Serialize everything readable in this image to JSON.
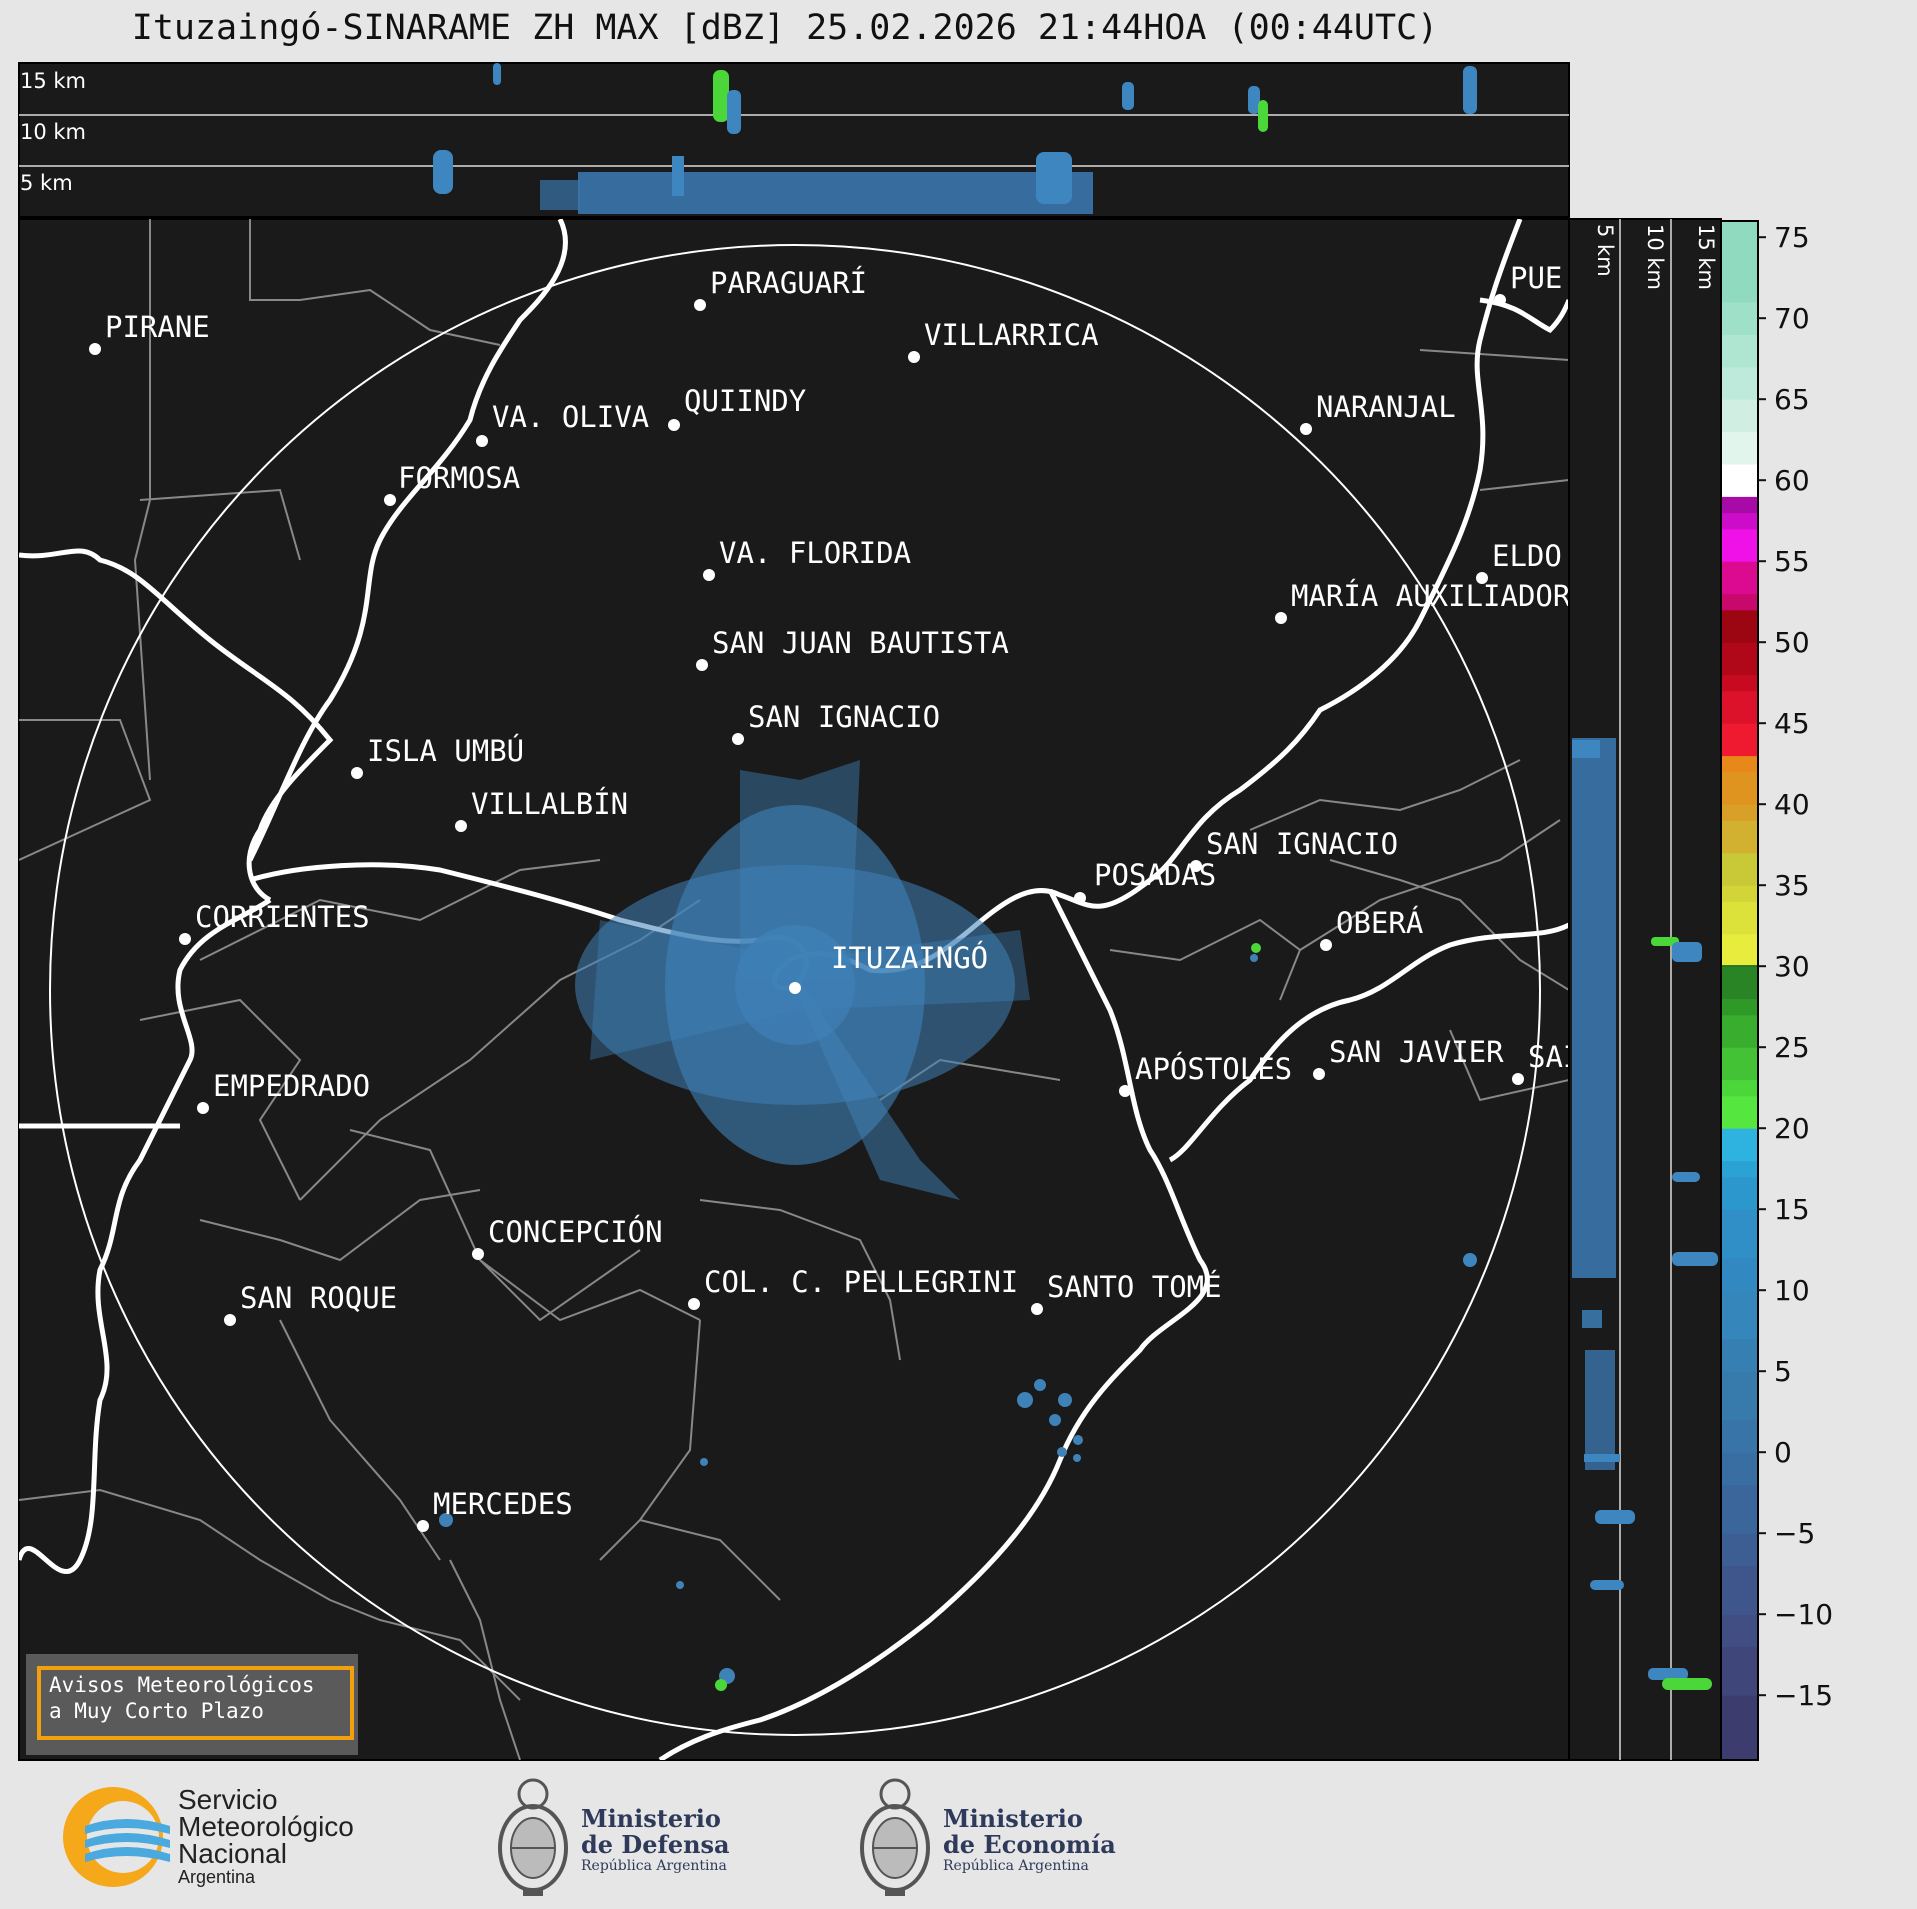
{
  "title": "Ituzaingó-SINARAME ZH MAX [dBZ] 25.02.2026 21:44HOA (00:44UTC)",
  "height_labels": [
    "15 km",
    "10 km",
    "5 km"
  ],
  "cities": [
    {
      "name": "PIRANE"
    },
    {
      "name": "PARAGUARÍ"
    },
    {
      "name": "VILLARRICA"
    },
    {
      "name": "PUE"
    },
    {
      "name": "VA. OLIVA"
    },
    {
      "name": "QUIINDY"
    },
    {
      "name": "NARANJAL"
    },
    {
      "name": "FORMOSA"
    },
    {
      "name": "VA. FLORIDA"
    },
    {
      "name": "ELDO"
    },
    {
      "name": "MARÍA AUXILIADOR"
    },
    {
      "name": "SAN JUAN BAUTISTA"
    },
    {
      "name": "SAN IGNACIO"
    },
    {
      "name": "ISLA UMBÚ"
    },
    {
      "name": "VILLALBÍN"
    },
    {
      "name": "SAN IGNACIO"
    },
    {
      "name": "POSADAS"
    },
    {
      "name": "CORRIENTES"
    },
    {
      "name": "ITUZAINGÓ"
    },
    {
      "name": "OBERÁ"
    },
    {
      "name": "EMPEDRADO"
    },
    {
      "name": "APÓSTOLES"
    },
    {
      "name": "SAN JAVIER"
    },
    {
      "name": "SAI"
    },
    {
      "name": "CONCEPCIÓN"
    },
    {
      "name": "COL. C. PELLEGRINI"
    },
    {
      "name": "SANTO TOMÉ"
    },
    {
      "name": "SAN ROQUE"
    },
    {
      "name": "MERCEDES"
    }
  ],
  "colorbar": {
    "ticks": [
      "75",
      "70",
      "65",
      "60",
      "55",
      "50",
      "45",
      "40",
      "35",
      "30",
      "25",
      "20",
      "15",
      "10",
      "5",
      "0",
      "−5",
      "−10",
      "−15"
    ],
    "range": [
      -19,
      76
    ]
  },
  "warning": {
    "line1": "Avisos Meteorológicos",
    "line2": "a Muy Corto Plazo"
  },
  "logos": {
    "smn": {
      "line1": "Servicio",
      "line2": "Meteorológico",
      "line3": "Nacional",
      "line4": "Argentina"
    },
    "defensa": {
      "line1": "Ministerio",
      "line2": "de Defensa",
      "line3": "República Argentina"
    },
    "economia": {
      "line1": "Ministerio",
      "line2": "de Economía",
      "line3": "República Argentina"
    }
  },
  "colors": {
    "background": "#1a1a1a",
    "page": "#e6e6e6",
    "echo": "#3f82b8",
    "accent": "#f2a10c"
  }
}
